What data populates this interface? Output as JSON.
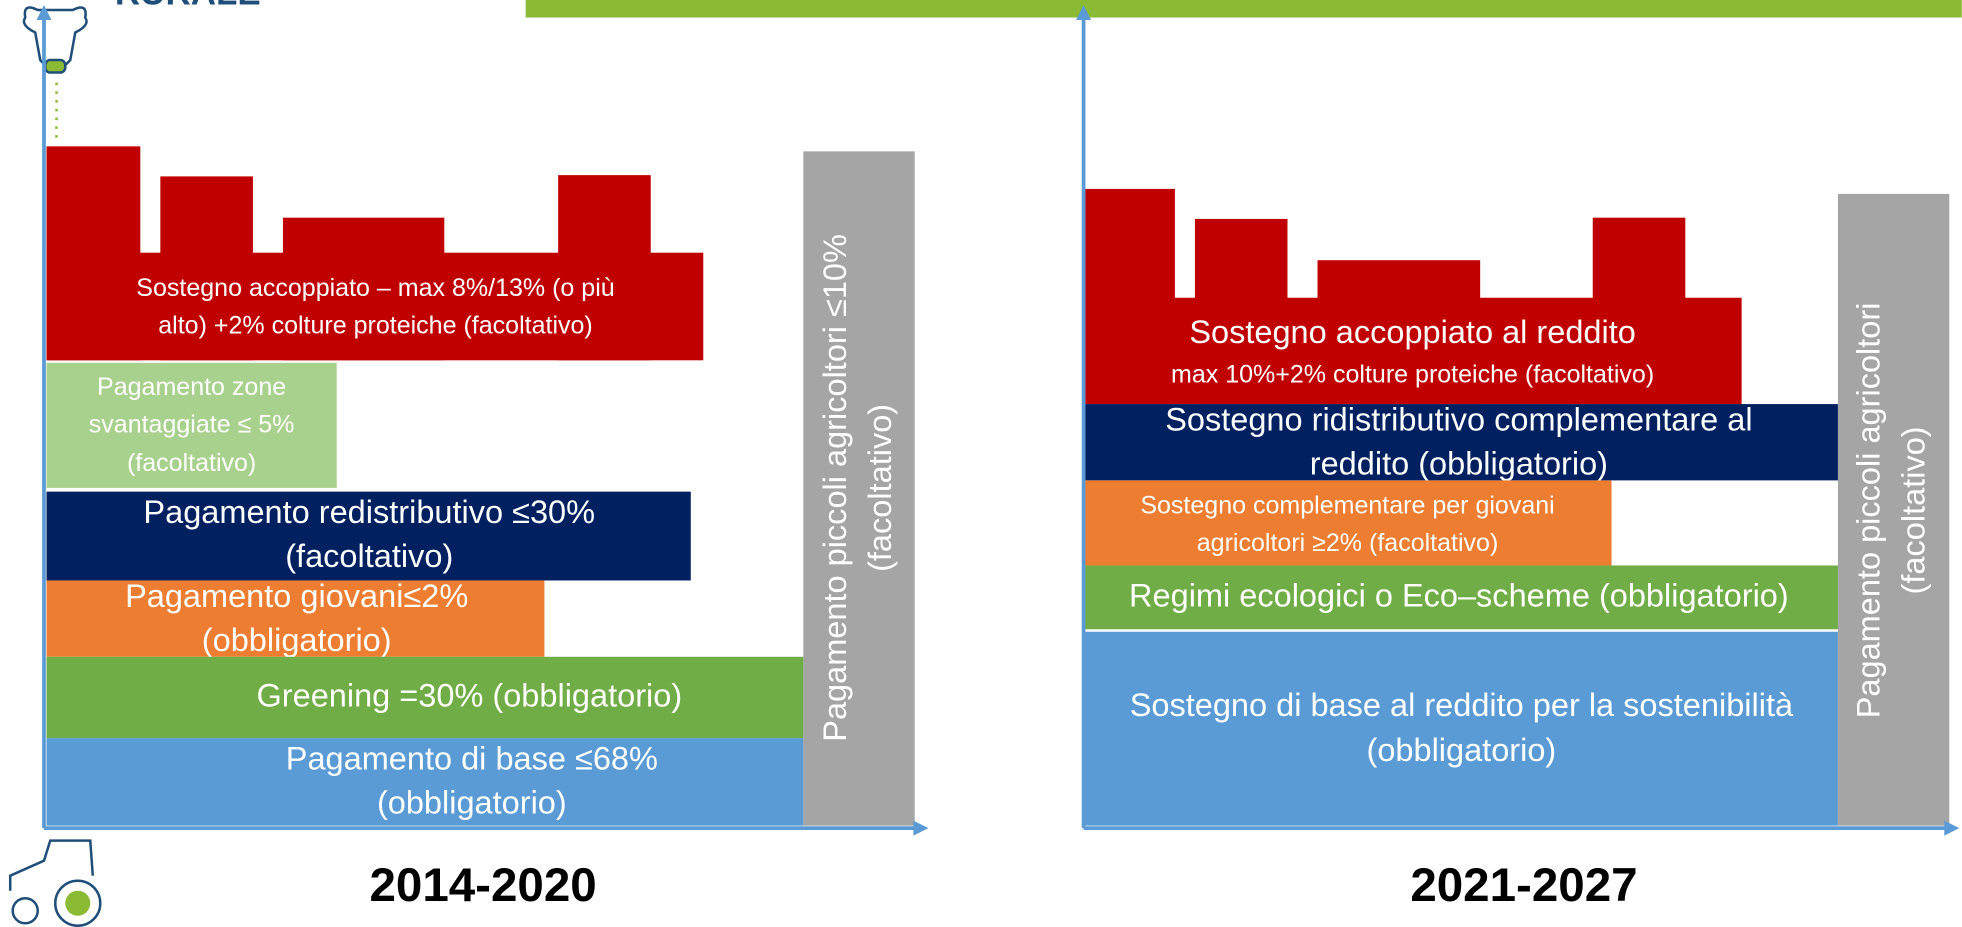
{
  "header": {
    "title": "RURALE"
  },
  "panels": [
    {
      "label": "2014-2020",
      "blocks": [
        {
          "lines": [
            "Sostegno accoppiato – max  8%/13%  (o più",
            "alto) +2%  colture proteiche  (facoltativo)"
          ]
        },
        {
          "lines": [
            "Pagamento zone",
            "svantaggiate ≤ 5%",
            "(facoltativo)"
          ]
        },
        {
          "lines": [
            "Pagamento redistributivo ≤30%",
            "(facoltativo)"
          ]
        },
        {
          "lines": [
            "Pagamento giovani≤2%",
            "(obbligatorio)"
          ]
        },
        {
          "lines": [
            "Greening =30% (obbligatorio)"
          ]
        },
        {
          "lines": [
            "Pagamento di base ≤68%",
            "(obbligatorio)"
          ]
        },
        {
          "lines": [
            "Pagamento piccoli agricoltori ≤10%",
            "(facoltativo)"
          ]
        }
      ]
    },
    {
      "label": "2021-2027",
      "blocks": [
        {
          "lines": [
            "Sostegno accoppiato al reddito",
            "max 10%+2% colture proteiche (facoltativo)"
          ]
        },
        {
          "lines": [
            "Sostegno ridistributivo complementare al",
            "reddito (obbligatorio)"
          ]
        },
        {
          "lines": [
            "Sostegno complementare per giovani",
            "agricoltori ≥2% (facoltativo)"
          ]
        },
        {
          "lines": [
            "Regimi ecologici o Eco–scheme (obbligatorio)"
          ]
        },
        {
          "lines": [
            "Sostegno di base al reddito per la sostenibilità",
            "(obbligatorio)"
          ]
        },
        {
          "lines": [
            "Pagamento piccoli agricoltori",
            "(facoltativo)"
          ]
        }
      ]
    }
  ]
}
